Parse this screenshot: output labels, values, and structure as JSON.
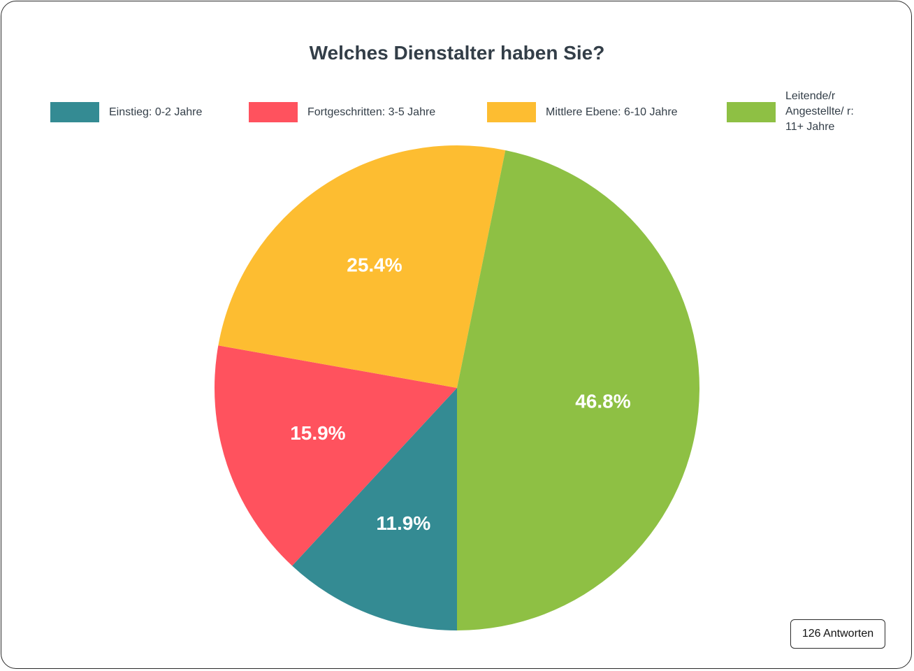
{
  "chart_data": {
    "type": "pie",
    "title": "Welches Dienstalter haben Sie?",
    "categories": [
      "Einstieg: 0-2 Jahre",
      "Fortgeschritten: 3-5 Jahre",
      "Mittlere Ebene: 6-10 Jahre",
      "Leitende/r Angestellte/ r: 11+ Jahre"
    ],
    "values": [
      11.9,
      15.9,
      25.4,
      46.8
    ],
    "value_labels": [
      "11.9%",
      "15.9%",
      "25.4%",
      "46.8%"
    ],
    "colors": [
      "#348b93",
      "#ff525e",
      "#fdbd31",
      "#8ec044"
    ],
    "legend_position": "top"
  },
  "footer": {
    "responses_label": "126 Antworten"
  }
}
